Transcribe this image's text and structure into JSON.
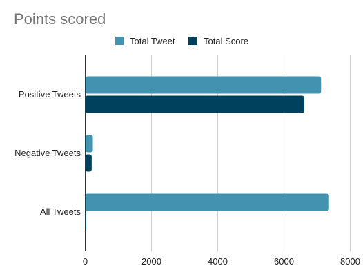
{
  "chart_data": {
    "type": "bar",
    "orientation": "horizontal",
    "title": "Points scored",
    "categories": [
      "Positive Tweets",
      "Negative Tweets",
      "All Tweets"
    ],
    "series": [
      {
        "name": "Total Tweet",
        "color": "#4393b0",
        "values": [
          7120,
          230,
          7360
        ]
      },
      {
        "name": "Total Score",
        "color": "#00425e",
        "values": [
          6610,
          195,
          30
        ]
      }
    ],
    "x_ticks": [
      "0",
      "2000",
      "4000",
      "6000",
      "8000"
    ],
    "xlim": [
      0,
      8000
    ],
    "grid": true,
    "legend_position": "top"
  }
}
